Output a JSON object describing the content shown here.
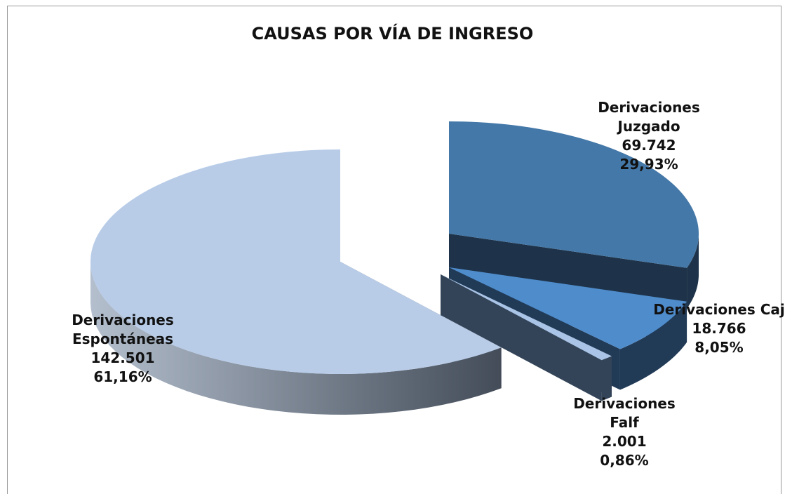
{
  "chart_data": {
    "type": "pie",
    "title": "CAUSAS POR VÍA DE INGRESO",
    "categories": [
      "Derivaciones Juzgado",
      "Derivaciones Caj",
      "Derivaciones Falf",
      "Derivaciones Espontáneas"
    ],
    "values": [
      69742,
      18766,
      2001,
      142501
    ],
    "value_labels": [
      "69.742",
      "18.766",
      "2.001",
      "142.501"
    ],
    "percentages": [
      29.93,
      8.05,
      0.86,
      61.16
    ],
    "percentage_labels": [
      "29,93%",
      "8,05%",
      "0,86%",
      "61,16%"
    ],
    "colors": [
      "#4478a8",
      "#4f8ccc",
      "#a9c4e6",
      "#b8cce8"
    ]
  }
}
